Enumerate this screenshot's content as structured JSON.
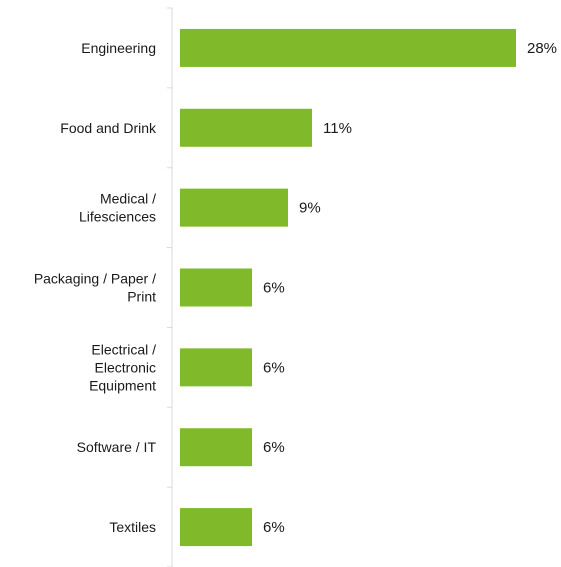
{
  "chart_data": {
    "type": "bar",
    "orientation": "horizontal",
    "title": "",
    "xlabel": "",
    "ylabel": "",
    "categories": [
      [
        "Engineering"
      ],
      [
        "Food and Drink"
      ],
      [
        "Medical /",
        "Lifesciences"
      ],
      [
        "Packaging / Paper /",
        "Print"
      ],
      [
        "Electrical /",
        "Electronic",
        "Equipment"
      ],
      [
        "Software / IT"
      ],
      [
        "Textiles"
      ]
    ],
    "values": [
      28,
      11,
      9,
      6,
      6,
      6,
      6
    ],
    "value_labels": [
      "28%",
      "11%",
      "9%",
      "6%",
      "6%",
      "6%",
      "6%"
    ],
    "xlim": [
      0,
      28
    ],
    "bar_color": "#80b929",
    "axis_color": "#d9d9d9",
    "grid": false,
    "legend": "none"
  }
}
